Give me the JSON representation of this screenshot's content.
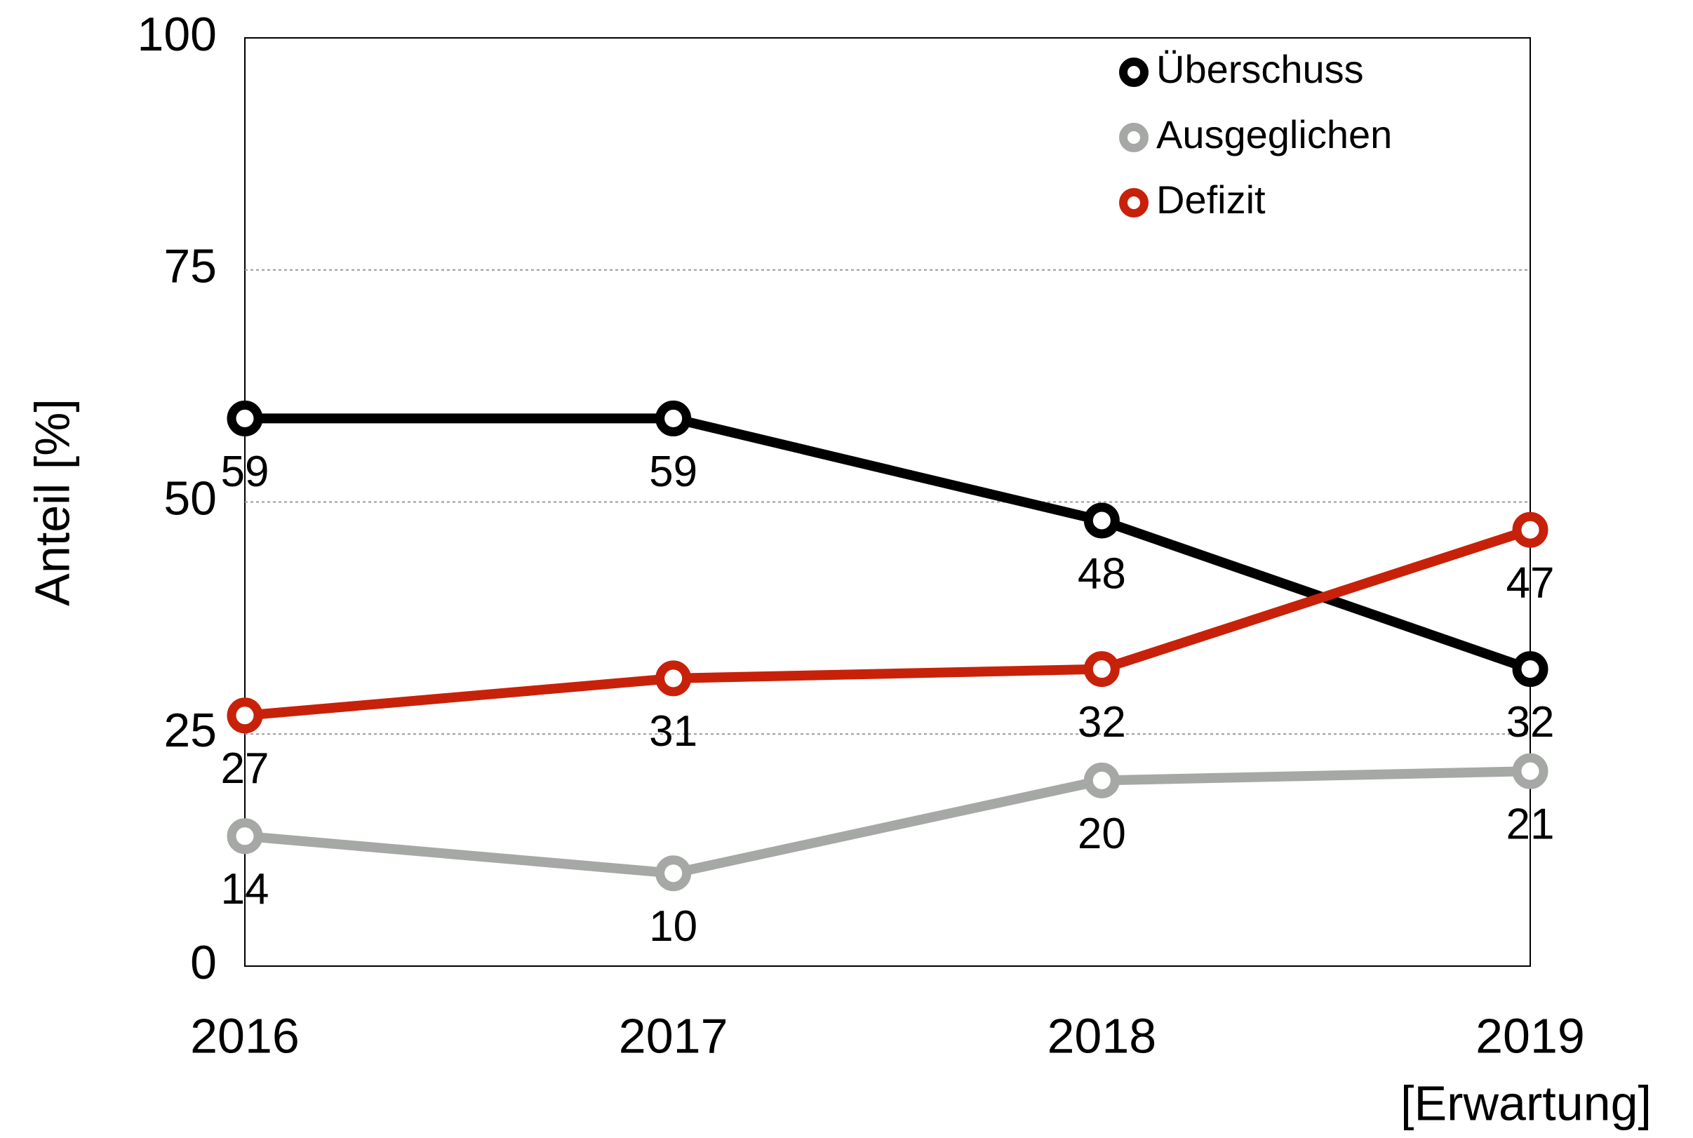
{
  "chart_data": {
    "type": "line",
    "y_label": "Anteil [%]",
    "categories": [
      "2016",
      "2017",
      "2018",
      "2019"
    ],
    "x_annotation": "[Erwartung]",
    "series": [
      {
        "name": "Überschuss",
        "color": "#000000",
        "values": [
          59,
          59,
          48,
          32
        ]
      },
      {
        "name": "Ausgeglichen",
        "color": "#a6a8a6",
        "values": [
          14,
          10,
          20,
          21
        ]
      },
      {
        "name": "Defizit",
        "color": "#c8210a",
        "values": [
          27,
          31,
          32,
          47
        ]
      }
    ],
    "ylim": [
      0,
      100
    ],
    "yticks": [
      0,
      25,
      50,
      75,
      100
    ],
    "grid": true,
    "legend": "upper right"
  }
}
